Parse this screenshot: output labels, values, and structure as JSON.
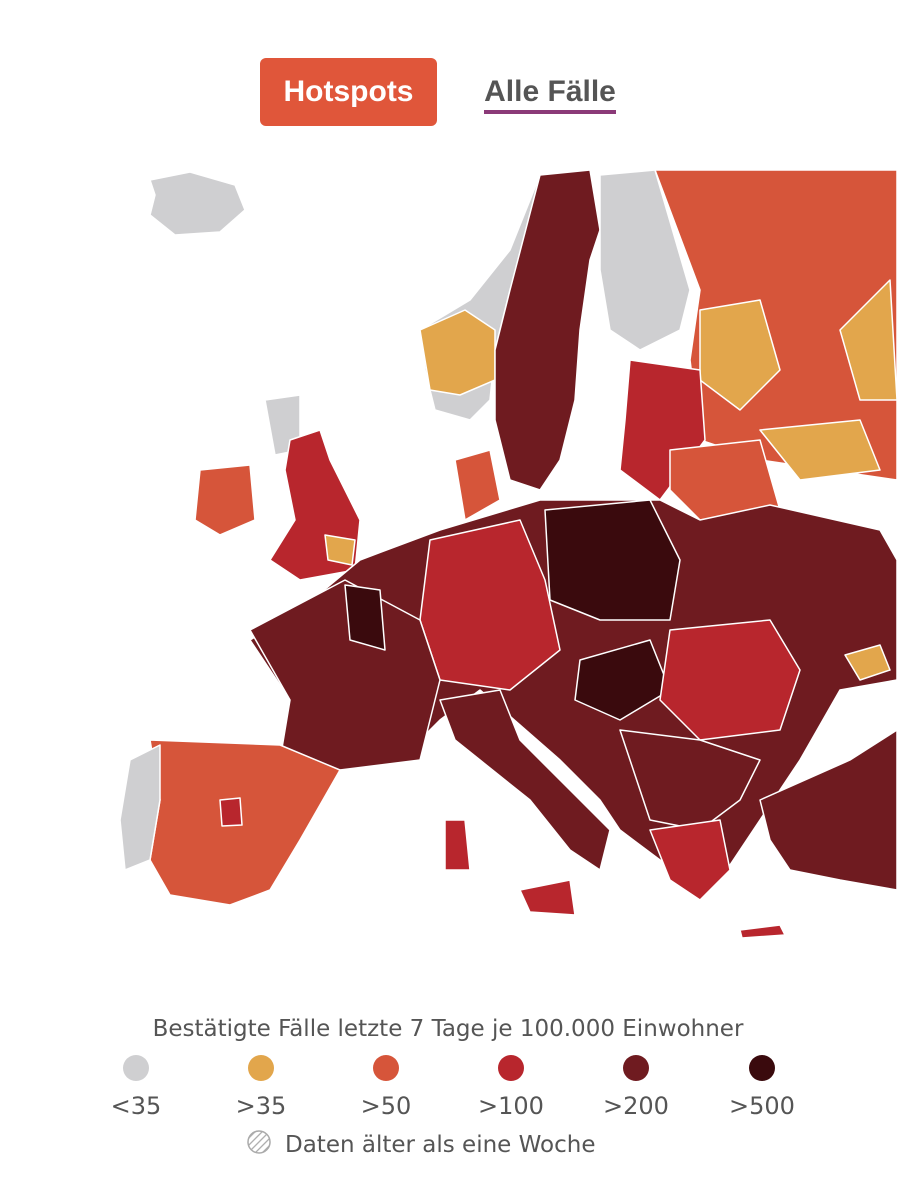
{
  "tabs": [
    {
      "label": "Hotspots",
      "active": true
    },
    {
      "label": "Alle Fälle",
      "active": false
    }
  ],
  "legend": {
    "title": "Bestätigte Fälle letzte 7 Tage je 100.000 Einwohner",
    "items": [
      {
        "label": "<35",
        "color": "#cfcfd1"
      },
      {
        "label": ">35",
        "color": "#e2a64c"
      },
      {
        "label": ">50",
        "color": "#d6553a"
      },
      {
        "label": ">100",
        "color": "#b8262d"
      },
      {
        "label": ">200",
        "color": "#6f1b20"
      },
      {
        "label": ">500",
        "color": "#3a0a0d"
      }
    ],
    "note": "Daten älter als eine Woche"
  }
}
